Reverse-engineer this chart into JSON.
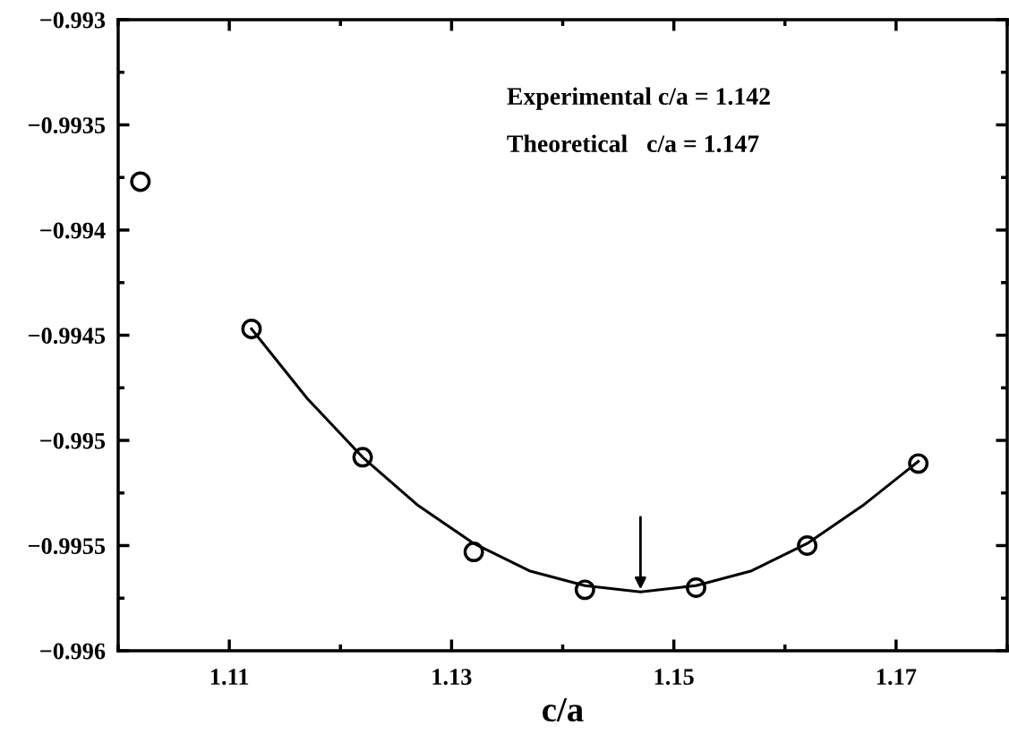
{
  "chart_data": {
    "type": "scatter",
    "xlabel": "c/a",
    "xlim": [
      1.1,
      1.18
    ],
    "ylim": [
      -0.996,
      -0.993
    ],
    "xticks": [
      {
        "value": 1.1,
        "label": null
      },
      1.11,
      {
        "value": 1.12,
        "label": null
      },
      1.13,
      {
        "value": 1.14,
        "label": null
      },
      1.15,
      {
        "value": 1.16,
        "label": null
      },
      1.17,
      {
        "value": 1.18,
        "label": null
      }
    ],
    "yticks": [
      {
        "value": -0.996,
        "label": "−0.996"
      },
      {
        "value": -0.99575,
        "label": null
      },
      {
        "value": -0.9955,
        "label": "−0.9955"
      },
      {
        "value": -0.99525,
        "label": null
      },
      {
        "value": -0.995,
        "label": "−0.995"
      },
      {
        "value": -0.99475,
        "label": null
      },
      {
        "value": -0.9945,
        "label": "−0.9945"
      },
      {
        "value": -0.99425,
        "label": null
      },
      {
        "value": -0.994,
        "label": "−0.994"
      },
      {
        "value": -0.99375,
        "label": null
      },
      {
        "value": -0.9935,
        "label": "−0.9935"
      },
      {
        "value": -0.99325,
        "label": null
      },
      {
        "value": -0.993,
        "label": "−0.993"
      }
    ],
    "grid": false,
    "legend": false,
    "series": [
      {
        "color": "#000000",
        "marker": "circle",
        "x": [
          1.102,
          1.112,
          1.122,
          1.132,
          1.142,
          1.152,
          1.162,
          1.172
        ],
        "values": [
          -0.99377,
          -0.99447,
          -0.99508,
          -0.99553,
          -0.99571,
          -0.9957,
          -0.9955,
          -0.99511
        ]
      },
      {
        "type": "line",
        "color": "#000000",
        "marker": "none",
        "line_style": "solid",
        "x": [
          1.112,
          1.117,
          1.122,
          1.127,
          1.132,
          1.137,
          1.142,
          1.147,
          1.152,
          1.157,
          1.162,
          1.167,
          1.172
        ],
        "values": [
          -0.99447,
          -0.9948,
          -0.99508,
          -0.99531,
          -0.99549,
          -0.99562,
          -0.99569,
          -0.99572,
          -0.99569,
          -0.99562,
          -0.99549,
          -0.99531,
          -0.9951
        ]
      }
    ],
    "annotations": [
      "Experimental c/a = 1.142",
      "Theoretical   c/a = 1.147"
    ]
  }
}
